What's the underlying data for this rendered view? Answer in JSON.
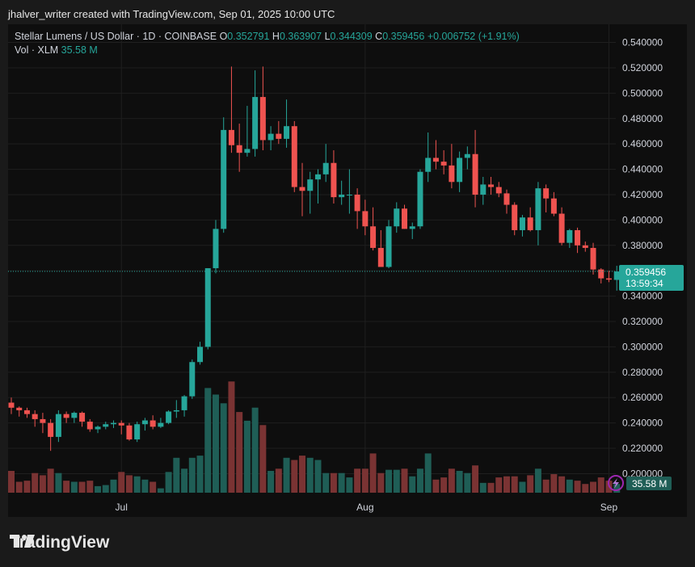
{
  "header": {
    "credit": "jhalver_writer created with TradingView.com, Sep 01, 2025 10:00 UTC"
  },
  "legend": {
    "symbol": "Stellar Lumens / US Dollar · 1D · COINBASE",
    "o_label": "O",
    "o_value": "0.352791",
    "h_label": "H",
    "h_value": "0.363907",
    "l_label": "L",
    "l_value": "0.344309",
    "c_label": "C",
    "c_value": "0.359456",
    "change": "+0.006752 (+1.91%)",
    "vol_label": "Vol · XLM",
    "vol_value": "35.58 M"
  },
  "price_badge": {
    "price": "0.359456",
    "countdown": "13:59:34"
  },
  "volume_badge": {
    "value": "35.58 M"
  },
  "brand": {
    "name": "TradingView"
  },
  "colors": {
    "up": "#26a69a",
    "down": "#ef5350",
    "up_vol": "#1f5e56",
    "down_vol": "#7a3333",
    "background": "#0e0e0e",
    "grid": "#1f1f1f",
    "text": "#d1d4dc"
  },
  "chart_data": {
    "type": "candlestick",
    "title": "Stellar Lumens / US Dollar · 1D · COINBASE",
    "y_axis": {
      "ticks": [
        "0.540000",
        "0.520000",
        "0.500000",
        "0.480000",
        "0.460000",
        "0.440000",
        "0.420000",
        "0.400000",
        "0.380000",
        "0.360000",
        "0.340000",
        "0.320000",
        "0.300000",
        "0.280000",
        "0.260000",
        "0.240000",
        "0.220000",
        "0.200000"
      ],
      "range": [
        0.185,
        0.548
      ]
    },
    "x_axis": {
      "ticks": [
        {
          "label": "Jul",
          "index": 14
        },
        {
          "label": "Aug",
          "index": 45
        },
        {
          "label": "Sep",
          "index": 76
        }
      ]
    },
    "last_price": 0.359456,
    "candles": [
      {
        "o": 0.256,
        "h": 0.26,
        "l": 0.247,
        "c": 0.252,
        "v": 1.0
      },
      {
        "o": 0.252,
        "h": 0.253,
        "l": 0.245,
        "c": 0.25,
        "v": 0.5
      },
      {
        "o": 0.25,
        "h": 0.252,
        "l": 0.244,
        "c": 0.247,
        "v": 0.55
      },
      {
        "o": 0.247,
        "h": 0.25,
        "l": 0.237,
        "c": 0.243,
        "v": 0.9
      },
      {
        "o": 0.243,
        "h": 0.248,
        "l": 0.232,
        "c": 0.24,
        "v": 0.8
      },
      {
        "o": 0.24,
        "h": 0.243,
        "l": 0.218,
        "c": 0.229,
        "v": 1.1
      },
      {
        "o": 0.229,
        "h": 0.25,
        "l": 0.225,
        "c": 0.247,
        "v": 0.9
      },
      {
        "o": 0.247,
        "h": 0.249,
        "l": 0.24,
        "c": 0.244,
        "v": 0.55
      },
      {
        "o": 0.244,
        "h": 0.249,
        "l": 0.24,
        "c": 0.248,
        "v": 0.5
      },
      {
        "o": 0.248,
        "h": 0.249,
        "l": 0.237,
        "c": 0.241,
        "v": 0.5
      },
      {
        "o": 0.241,
        "h": 0.243,
        "l": 0.233,
        "c": 0.235,
        "v": 0.55
      },
      {
        "o": 0.235,
        "h": 0.238,
        "l": 0.232,
        "c": 0.237,
        "v": 0.3
      },
      {
        "o": 0.237,
        "h": 0.241,
        "l": 0.235,
        "c": 0.239,
        "v": 0.35
      },
      {
        "o": 0.239,
        "h": 0.242,
        "l": 0.236,
        "c": 0.24,
        "v": 0.6
      },
      {
        "o": 0.24,
        "h": 0.242,
        "l": 0.231,
        "c": 0.238,
        "v": 0.95
      },
      {
        "o": 0.238,
        "h": 0.24,
        "l": 0.226,
        "c": 0.227,
        "v": 0.8
      },
      {
        "o": 0.227,
        "h": 0.241,
        "l": 0.225,
        "c": 0.239,
        "v": 0.75
      },
      {
        "o": 0.239,
        "h": 0.244,
        "l": 0.234,
        "c": 0.242,
        "v": 0.6
      },
      {
        "o": 0.242,
        "h": 0.246,
        "l": 0.235,
        "c": 0.237,
        "v": 0.5
      },
      {
        "o": 0.237,
        "h": 0.244,
        "l": 0.236,
        "c": 0.24,
        "v": 0.2
      },
      {
        "o": 0.24,
        "h": 0.25,
        "l": 0.239,
        "c": 0.249,
        "v": 0.95
      },
      {
        "o": 0.249,
        "h": 0.258,
        "l": 0.244,
        "c": 0.25,
        "v": 1.6
      },
      {
        "o": 0.25,
        "h": 0.262,
        "l": 0.245,
        "c": 0.261,
        "v": 1.1
      },
      {
        "o": 0.261,
        "h": 0.29,
        "l": 0.259,
        "c": 0.288,
        "v": 1.6
      },
      {
        "o": 0.288,
        "h": 0.304,
        "l": 0.286,
        "c": 0.3,
        "v": 1.7
      },
      {
        "o": 0.3,
        "h": 0.362,
        "l": 0.298,
        "c": 0.362,
        "v": 4.8
      },
      {
        "o": 0.362,
        "h": 0.4,
        "l": 0.358,
        "c": 0.393,
        "v": 4.5
      },
      {
        "o": 0.393,
        "h": 0.481,
        "l": 0.39,
        "c": 0.471,
        "v": 4.1
      },
      {
        "o": 0.471,
        "h": 0.521,
        "l": 0.453,
        "c": 0.459,
        "v": 5.1
      },
      {
        "o": 0.459,
        "h": 0.476,
        "l": 0.438,
        "c": 0.453,
        "v": 3.7
      },
      {
        "o": 0.453,
        "h": 0.49,
        "l": 0.45,
        "c": 0.456,
        "v": 3.3
      },
      {
        "o": 0.456,
        "h": 0.518,
        "l": 0.45,
        "c": 0.497,
        "v": 3.9
      },
      {
        "o": 0.497,
        "h": 0.521,
        "l": 0.455,
        "c": 0.463,
        "v": 3.1
      },
      {
        "o": 0.463,
        "h": 0.474,
        "l": 0.455,
        "c": 0.468,
        "v": 1.0
      },
      {
        "o": 0.468,
        "h": 0.478,
        "l": 0.46,
        "c": 0.464,
        "v": 1.1
      },
      {
        "o": 0.464,
        "h": 0.495,
        "l": 0.457,
        "c": 0.474,
        "v": 1.6
      },
      {
        "o": 0.474,
        "h": 0.478,
        "l": 0.422,
        "c": 0.426,
        "v": 1.5
      },
      {
        "o": 0.426,
        "h": 0.445,
        "l": 0.403,
        "c": 0.423,
        "v": 1.7
      },
      {
        "o": 0.423,
        "h": 0.438,
        "l": 0.405,
        "c": 0.432,
        "v": 1.6
      },
      {
        "o": 0.432,
        "h": 0.44,
        "l": 0.413,
        "c": 0.436,
        "v": 1.5
      },
      {
        "o": 0.436,
        "h": 0.46,
        "l": 0.43,
        "c": 0.445,
        "v": 0.9
      },
      {
        "o": 0.445,
        "h": 0.455,
        "l": 0.413,
        "c": 0.418,
        "v": 0.9
      },
      {
        "o": 0.418,
        "h": 0.431,
        "l": 0.412,
        "c": 0.42,
        "v": 0.9
      },
      {
        "o": 0.42,
        "h": 0.44,
        "l": 0.405,
        "c": 0.42,
        "v": 0.7
      },
      {
        "o": 0.42,
        "h": 0.425,
        "l": 0.393,
        "c": 0.407,
        "v": 1.1
      },
      {
        "o": 0.407,
        "h": 0.416,
        "l": 0.388,
        "c": 0.395,
        "v": 1.1
      },
      {
        "o": 0.395,
        "h": 0.41,
        "l": 0.376,
        "c": 0.378,
        "v": 1.8
      },
      {
        "o": 0.378,
        "h": 0.392,
        "l": 0.363,
        "c": 0.363,
        "v": 0.9
      },
      {
        "o": 0.363,
        "h": 0.4,
        "l": 0.362,
        "c": 0.395,
        "v": 1.05
      },
      {
        "o": 0.395,
        "h": 0.414,
        "l": 0.39,
        "c": 0.409,
        "v": 1.05
      },
      {
        "o": 0.409,
        "h": 0.412,
        "l": 0.393,
        "c": 0.393,
        "v": 1.1
      },
      {
        "o": 0.393,
        "h": 0.398,
        "l": 0.385,
        "c": 0.395,
        "v": 0.75
      },
      {
        "o": 0.395,
        "h": 0.44,
        "l": 0.393,
        "c": 0.438,
        "v": 1.1
      },
      {
        "o": 0.438,
        "h": 0.469,
        "l": 0.43,
        "c": 0.449,
        "v": 1.8
      },
      {
        "o": 0.449,
        "h": 0.463,
        "l": 0.44,
        "c": 0.446,
        "v": 0.6
      },
      {
        "o": 0.446,
        "h": 0.455,
        "l": 0.436,
        "c": 0.443,
        "v": 0.7
      },
      {
        "o": 0.443,
        "h": 0.46,
        "l": 0.425,
        "c": 0.43,
        "v": 1.1
      },
      {
        "o": 0.43,
        "h": 0.454,
        "l": 0.422,
        "c": 0.449,
        "v": 1.0
      },
      {
        "o": 0.449,
        "h": 0.458,
        "l": 0.44,
        "c": 0.452,
        "v": 0.9
      },
      {
        "o": 0.452,
        "h": 0.471,
        "l": 0.41,
        "c": 0.42,
        "v": 1.25
      },
      {
        "o": 0.42,
        "h": 0.434,
        "l": 0.412,
        "c": 0.428,
        "v": 0.45
      },
      {
        "o": 0.428,
        "h": 0.434,
        "l": 0.42,
        "c": 0.426,
        "v": 0.45
      },
      {
        "o": 0.426,
        "h": 0.43,
        "l": 0.418,
        "c": 0.421,
        "v": 0.7
      },
      {
        "o": 0.421,
        "h": 0.424,
        "l": 0.405,
        "c": 0.412,
        "v": 0.75
      },
      {
        "o": 0.412,
        "h": 0.414,
        "l": 0.388,
        "c": 0.392,
        "v": 0.75
      },
      {
        "o": 0.392,
        "h": 0.404,
        "l": 0.387,
        "c": 0.402,
        "v": 0.5
      },
      {
        "o": 0.402,
        "h": 0.41,
        "l": 0.391,
        "c": 0.392,
        "v": 0.8
      },
      {
        "o": 0.392,
        "h": 0.43,
        "l": 0.38,
        "c": 0.425,
        "v": 1.1
      },
      {
        "o": 0.425,
        "h": 0.428,
        "l": 0.406,
        "c": 0.417,
        "v": 0.6
      },
      {
        "o": 0.417,
        "h": 0.422,
        "l": 0.403,
        "c": 0.405,
        "v": 0.85
      },
      {
        "o": 0.405,
        "h": 0.41,
        "l": 0.38,
        "c": 0.382,
        "v": 0.75
      },
      {
        "o": 0.382,
        "h": 0.393,
        "l": 0.378,
        "c": 0.392,
        "v": 0.6
      },
      {
        "o": 0.392,
        "h": 0.394,
        "l": 0.374,
        "c": 0.38,
        "v": 0.55
      },
      {
        "o": 0.38,
        "h": 0.383,
        "l": 0.375,
        "c": 0.378,
        "v": 0.4
      },
      {
        "o": 0.378,
        "h": 0.382,
        "l": 0.357,
        "c": 0.361,
        "v": 0.5
      },
      {
        "o": 0.361,
        "h": 0.362,
        "l": 0.35,
        "c": 0.354,
        "v": 0.7
      },
      {
        "o": 0.354,
        "h": 0.36,
        "l": 0.351,
        "c": 0.353,
        "v": 0.55
      },
      {
        "o": 0.352791,
        "h": 0.363907,
        "l": 0.344309,
        "c": 0.359456,
        "v": 0.4
      }
    ]
  }
}
